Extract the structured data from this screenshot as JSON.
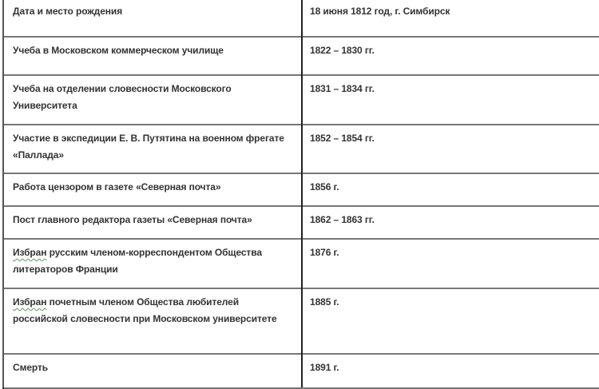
{
  "table": {
    "rows": [
      {
        "event": "Дата и место рождения",
        "date": "18 июня 1812 год, г. Симбирск"
      },
      {
        "event": "Учеба в Московском коммерческом училище",
        "date": "1822 – 1830 гг."
      },
      {
        "event": "Учеба на отделении словесности Московского Университета",
        "date": "1831 – 1834 гг."
      },
      {
        "event": "Участие в экспедиции Е. В. Путятина на военном фрегате «Паллада»",
        "date": "1852 – 1854 гг."
      },
      {
        "event": "Работа цензором в газете «Северная почта»",
        "date": "1856 г."
      },
      {
        "event": "Пост главного редактора газеты «Северная почта»",
        "date": "1862 – 1863 гг."
      },
      {
        "event_first": "Избран",
        "event_rest": " русским членом-корреспондентом Общества литераторов Франции",
        "date": "1876 г."
      },
      {
        "event_first": "Избран",
        "event_rest": " почетным членом Общества любителей российской словесности при Московском университете",
        "date": "1885 г."
      },
      {
        "event": "Смерть",
        "date": "1891 г."
      }
    ]
  }
}
